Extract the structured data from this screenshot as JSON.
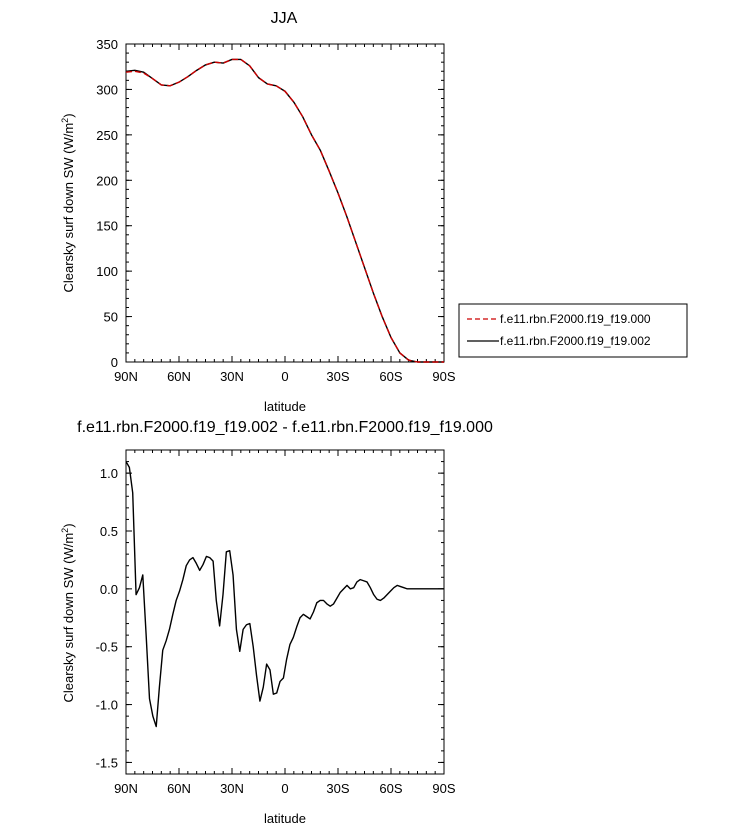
{
  "chart_data": [
    {
      "type": "line",
      "title": "JJA",
      "xlabel": "latitude",
      "ylabel": "Clearsky surf down SW (W/m",
      "ylabel_sup": "2",
      "ylabel_tail": ")",
      "xlim": [
        90,
        -90
      ],
      "ylim": [
        0,
        350
      ],
      "xticks": [
        90,
        60,
        30,
        0,
        -30,
        -60,
        -90
      ],
      "xtick_labels": [
        "90N",
        "60N",
        "30N",
        "0",
        "30S",
        "60S",
        "90S"
      ],
      "yticks": [
        0,
        50,
        100,
        150,
        200,
        250,
        300,
        350
      ],
      "ytick_labels": [
        "0",
        "50",
        "100",
        "150",
        "200",
        "250",
        "300",
        "350"
      ],
      "legend_position": "right",
      "x": [
        90,
        85,
        80,
        75,
        70,
        65,
        60,
        55,
        50,
        45,
        40,
        35,
        30,
        25,
        20,
        15,
        10,
        5,
        0,
        -5,
        -10,
        -15,
        -20,
        -25,
        -30,
        -35,
        -40,
        -45,
        -50,
        -55,
        -60,
        -65,
        -70,
        -75,
        -80,
        -85,
        -90
      ],
      "series": [
        {
          "name": "f.e11.rbn.F2000.f19_f19.000",
          "color": "#cc0000",
          "dash": "dashed",
          "values": [
            319,
            320,
            318,
            312,
            305,
            304,
            308,
            314,
            321,
            327,
            330,
            329,
            333,
            333,
            326,
            313,
            306,
            304,
            298,
            286,
            270,
            250,
            233,
            210,
            186,
            160,
            132,
            104,
            76,
            50,
            27,
            10,
            2,
            0,
            0,
            0,
            0
          ]
        },
        {
          "name": "f.e11.rbn.F2000.f19_f19.002",
          "color": "#000000",
          "dash": "solid",
          "values": [
            320,
            321,
            319,
            312,
            305,
            304,
            308,
            314,
            321,
            327,
            330,
            329,
            333,
            333,
            326,
            313,
            306,
            304,
            298,
            286,
            270,
            250,
            233,
            210,
            186,
            160,
            132,
            104,
            76,
            50,
            27,
            10,
            2,
            0,
            0,
            0,
            0
          ]
        }
      ]
    },
    {
      "type": "line",
      "title": "f.e11.rbn.F2000.f19_f19.002 - f.e11.rbn.F2000.f19_f19.000",
      "xlabel": "latitude",
      "ylabel": "Clearsky surf down SW (W/m",
      "ylabel_sup": "2",
      "ylabel_tail": ")",
      "xlim": [
        90,
        -90
      ],
      "ylim": [
        -1.6,
        1.2
      ],
      "xticks": [
        90,
        60,
        30,
        0,
        -30,
        -60,
        -90
      ],
      "xtick_labels": [
        "90N",
        "60N",
        "30N",
        "0",
        "30S",
        "60S",
        "90S"
      ],
      "yticks": [
        1.0,
        0.5,
        0.0,
        -0.5,
        -1.0,
        -1.5
      ],
      "ytick_labels": [
        "1.0",
        "0.5",
        "0.0",
        "-0.5",
        "-1.0",
        "-1.5"
      ],
      "series": [
        {
          "name": "",
          "color": "#000000",
          "dash": "solid",
          "x": [
            90,
            88.1,
            86.2,
            84.3,
            82.4,
            80.5,
            78.6,
            76.7,
            74.8,
            72.9,
            71.1,
            69.2,
            67.3,
            65.4,
            63.5,
            61.6,
            59.7,
            57.8,
            55.9,
            54.0,
            52.1,
            50.2,
            48.3,
            46.4,
            44.5,
            42.6,
            40.7,
            38.9,
            37.0,
            35.1,
            33.2,
            31.3,
            29.4,
            27.5,
            25.6,
            23.7,
            21.8,
            19.9,
            18.0,
            16.1,
            14.2,
            12.3,
            10.4,
            8.5,
            6.6,
            4.7,
            2.8,
            0.9,
            -0.9,
            -2.8,
            -4.7,
            -6.6,
            -8.5,
            -10.4,
            -12.3,
            -14.2,
            -16.1,
            -18.0,
            -19.9,
            -21.8,
            -23.7,
            -25.6,
            -27.5,
            -29.4,
            -31.3,
            -33.2,
            -35.1,
            -37.0,
            -38.9,
            -40.7,
            -42.6,
            -44.5,
            -46.4,
            -48.3,
            -50.2,
            -52.1,
            -54.0,
            -55.9,
            -57.8,
            -59.7,
            -61.6,
            -63.5,
            -65.4,
            -67.3,
            -69.2,
            -71.1,
            -72.9,
            -74.8,
            -76.7,
            -78.6,
            -80.5,
            -82.4,
            -84.3,
            -86.2,
            -88.1,
            -90
          ],
          "values": [
            1.1,
            1.05,
            0.83,
            -0.05,
            0.01,
            0.12,
            -0.4,
            -0.95,
            -1.1,
            -1.19,
            -0.85,
            -0.53,
            -0.45,
            -0.35,
            -0.22,
            -0.1,
            -0.02,
            0.08,
            0.2,
            0.25,
            0.27,
            0.22,
            0.16,
            0.21,
            0.28,
            0.27,
            0.24,
            -0.1,
            -0.32,
            -0.05,
            0.32,
            0.33,
            0.12,
            -0.35,
            -0.54,
            -0.35,
            -0.31,
            -0.3,
            -0.5,
            -0.75,
            -0.97,
            -0.85,
            -0.65,
            -0.7,
            -0.91,
            -0.9,
            -0.8,
            -0.77,
            -0.61,
            -0.48,
            -0.42,
            -0.33,
            -0.25,
            -0.22,
            -0.24,
            -0.26,
            -0.2,
            -0.12,
            -0.1,
            -0.1,
            -0.13,
            -0.15,
            -0.13,
            -0.08,
            -0.03,
            0.0,
            0.03,
            0.0,
            0.01,
            0.06,
            0.08,
            0.07,
            0.06,
            0.01,
            -0.05,
            -0.09,
            -0.1,
            -0.08,
            -0.05,
            -0.02,
            0.01,
            0.03,
            0.02,
            0.01,
            0.0,
            0.0,
            0.0,
            0.0,
            0.0,
            0.0,
            0.0,
            0.0,
            0.0,
            0.0,
            0.0,
            0.0
          ]
        }
      ]
    }
  ]
}
